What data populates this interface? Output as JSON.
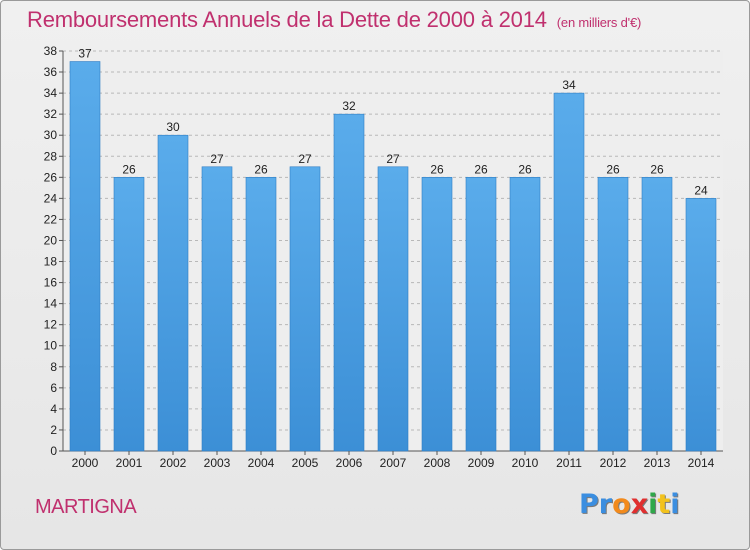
{
  "chart_data": {
    "type": "bar",
    "title": "Remboursements Annuels de la Dette de 2000 à 2014",
    "subtitle": "(en milliers d'€)",
    "categories": [
      "2000",
      "2001",
      "2002",
      "2003",
      "2004",
      "2005",
      "2006",
      "2007",
      "2008",
      "2009",
      "2010",
      "2011",
      "2012",
      "2013",
      "2014"
    ],
    "values": [
      37,
      26,
      30,
      27,
      26,
      27,
      32,
      27,
      26,
      26,
      26,
      34,
      26,
      26,
      24
    ],
    "ylim": [
      0,
      38
    ],
    "yticks": [
      0,
      2,
      4,
      6,
      8,
      10,
      12,
      14,
      16,
      18,
      20,
      22,
      24,
      26,
      28,
      30,
      32,
      34,
      36,
      38
    ],
    "xlabel": "",
    "ylabel": "",
    "grid": true,
    "bar_color": "#3c8fd6",
    "bar_color_light": "#5aaceb"
  },
  "commune": "MARTIGNA",
  "brand": {
    "letters": [
      "P",
      "r",
      "o",
      "x",
      "i",
      "t",
      "i"
    ],
    "colors": [
      "#3b8ee0",
      "#3b8ee0",
      "#f28a1c",
      "#e02f2f",
      "#2fa84a",
      "#f2c21c",
      "#3b8ee0"
    ]
  }
}
